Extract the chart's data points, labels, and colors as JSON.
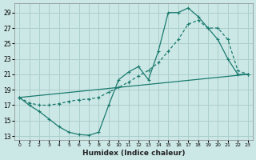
{
  "xlabel": "Humidex (Indice chaleur)",
  "bg_color": "#cce8e6",
  "grid_color": "#aacfcc",
  "line_color": "#1a7a6e",
  "xlim": [
    -0.5,
    23.5
  ],
  "ylim": [
    12.5,
    30.2
  ],
  "yticks": [
    13,
    15,
    17,
    19,
    21,
    23,
    25,
    27,
    29
  ],
  "xticks": [
    0,
    1,
    2,
    3,
    4,
    5,
    6,
    7,
    8,
    9,
    10,
    11,
    12,
    13,
    14,
    15,
    16,
    17,
    18,
    19,
    20,
    21,
    22,
    23
  ],
  "line1_x": [
    0,
    1,
    2,
    3,
    4,
    5,
    6,
    7,
    8,
    9,
    10,
    11,
    12,
    13,
    14,
    15,
    16,
    17,
    18,
    19,
    20,
    21,
    22,
    23
  ],
  "line1_y": [
    18.0,
    17.0,
    16.2,
    15.2,
    14.2,
    13.5,
    13.2,
    13.1,
    13.5,
    17.0,
    20.3,
    21.3,
    22.0,
    20.3,
    24.0,
    29.0,
    29.0,
    29.6,
    28.5,
    27.0,
    25.5,
    23.0,
    21.0,
    21.0
  ],
  "line2_x": [
    0,
    1,
    2,
    3,
    4,
    5,
    6,
    7,
    8,
    9,
    10,
    11,
    12,
    13,
    14,
    15,
    16,
    17,
    18,
    19,
    20,
    21,
    22,
    23
  ],
  "line2_y": [
    18.0,
    17.3,
    17.0,
    17.0,
    17.2,
    17.5,
    17.7,
    17.8,
    18.0,
    18.7,
    19.3,
    20.0,
    20.8,
    21.5,
    22.5,
    24.0,
    25.5,
    27.5,
    28.0,
    27.0,
    27.0,
    25.5,
    21.5,
    21.0
  ],
  "line3_x": [
    0,
    23
  ],
  "line3_y": [
    18.0,
    21.0
  ]
}
